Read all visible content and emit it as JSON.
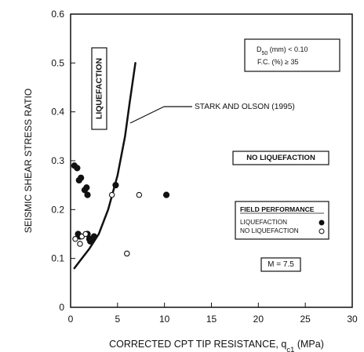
{
  "chart_data": {
    "type": "scatter",
    "title": "",
    "xlabel_main": "CORRECTED CPT TIP RESISTANCE, q",
    "xlabel_sub": "c1",
    "xlabel_unit": " (MPa)",
    "ylabel": "SEISMIC SHEAR STRESS RATIO",
    "xlim": [
      0,
      30
    ],
    "ylim": [
      0,
      0.6
    ],
    "x_ticks": [
      0,
      5,
      10,
      15,
      20,
      25,
      30
    ],
    "y_ticks": [
      0,
      0.1,
      0.2,
      0.3,
      0.4,
      0.5,
      0.6
    ],
    "x_tick_labels": [
      "0",
      "5",
      "10",
      "15",
      "20",
      "25",
      "30"
    ],
    "y_tick_labels": [
      "0",
      "0.1",
      "0.2",
      "0.3",
      "0.4",
      "0.5",
      "0.6"
    ],
    "grid": false,
    "legend_position": "right-middle",
    "legend": {
      "title": "FIELD PERFORMANCE",
      "liquefaction_label": "LIQUEFACTION",
      "no_liquefaction_label": "NO LIQUEFACTION"
    },
    "region_labels": {
      "liquefaction": "LIQUEFACTION",
      "no_liquefaction": "NO LIQUEFACTION"
    },
    "curve_label": "STARK AND OLSON (1995)",
    "box_d50_line1_prefix": "D",
    "box_d50_line1_sub": "50",
    "box_d50_line1_suffix": " (mm) < 0.10",
    "box_d50_line2_prefix": "F.C. (%) ",
    "box_d50_line2_symbol": "≥",
    "box_d50_line2_value": " 35",
    "magnitude_label": "M = 7.5",
    "boundary_curve": {
      "x": [
        0.4,
        1.2,
        2.0,
        3.0,
        4.0,
        5.0,
        5.8,
        6.3,
        6.9
      ],
      "y": [
        0.08,
        0.1,
        0.12,
        0.15,
        0.2,
        0.27,
        0.35,
        0.42,
        0.5
      ]
    },
    "series": [
      {
        "name": "LIQUEFACTION",
        "style": "filled",
        "x": [
          0.4,
          0.7,
          0.9,
          1.1,
          1.5,
          1.7,
          1.8,
          2.0,
          2.1,
          2.3,
          2.5,
          0.8,
          1.0,
          1.8,
          2.2,
          4.8,
          10.2
        ],
        "y": [
          0.29,
          0.285,
          0.26,
          0.265,
          0.24,
          0.245,
          0.23,
          0.14,
          0.135,
          0.14,
          0.145,
          0.15,
          0.145,
          0.15,
          0.14,
          0.25,
          0.23
        ]
      },
      {
        "name": "NO LIQUEFACTION",
        "style": "open",
        "x": [
          0.5,
          1.0,
          1.2,
          1.6,
          4.4,
          6.0,
          7.3
        ],
        "y": [
          0.14,
          0.13,
          0.145,
          0.15,
          0.23,
          0.11,
          0.23
        ]
      }
    ]
  }
}
